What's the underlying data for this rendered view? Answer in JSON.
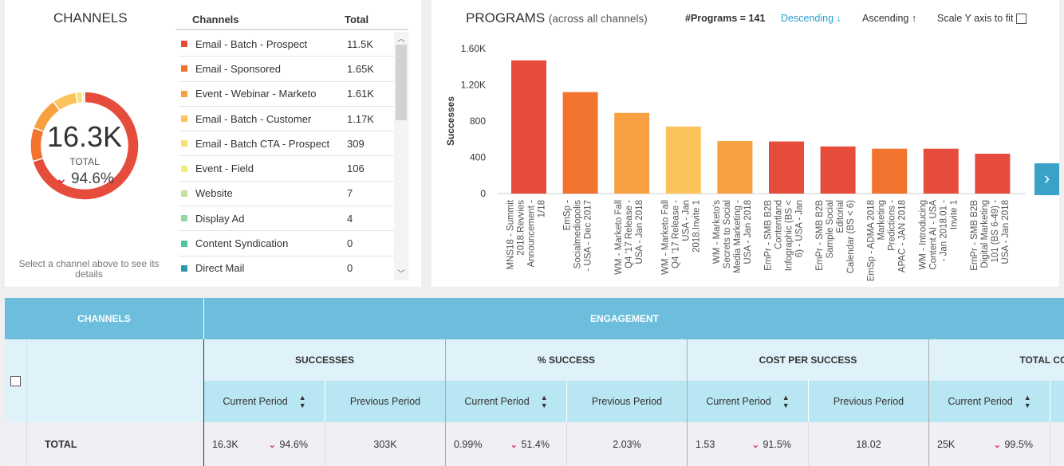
{
  "channels_panel": {
    "title": "CHANNELS",
    "total_value": "16.3K",
    "total_label": "TOTAL",
    "change": "94.6%",
    "change_direction": "down",
    "hint": "Select a channel above to see its details",
    "col_channel": "Channels",
    "col_total": "Total",
    "items": [
      {
        "name": "Email - Batch - Prospect",
        "total": "11.5K",
        "value": 11500,
        "color": "#e64c3c"
      },
      {
        "name": "Email - Sponsored",
        "total": "1.65K",
        "value": 1650,
        "color": "#f2732e"
      },
      {
        "name": "Event - Webinar - Marketo",
        "total": "1.61K",
        "value": 1610,
        "color": "#f7a041"
      },
      {
        "name": "Email - Batch - Customer",
        "total": "1.17K",
        "value": 1170,
        "color": "#fcc35d"
      },
      {
        "name": "Email - Batch CTA - Prospect",
        "total": "309",
        "value": 309,
        "color": "#f8e079"
      },
      {
        "name": "Event - Field",
        "total": "106",
        "value": 106,
        "color": "#eef07a"
      },
      {
        "name": "Website",
        "total": "7",
        "value": 7,
        "color": "#c5e19a"
      },
      {
        "name": "Display Ad",
        "total": "4",
        "value": 4,
        "color": "#96d6a0"
      },
      {
        "name": "Content Syndication",
        "total": "0",
        "value": 0,
        "color": "#4fc49c"
      },
      {
        "name": "Direct Mail",
        "total": "0",
        "value": 0,
        "color": "#2a9aa6"
      }
    ]
  },
  "programs_panel": {
    "title": "PROGRAMS",
    "subtitle": "(across all channels)",
    "count": "#Programs = 141",
    "descending": "Descending",
    "ascending": "Ascending",
    "scale_label": "Scale Y axis to fit",
    "scale_checked": false
  },
  "chart_data": {
    "type": "bar",
    "ylabel": "Successes",
    "ylim": [
      0,
      1600
    ],
    "yticks": [
      "0",
      "400",
      "800",
      "1.20K",
      "1.60K"
    ],
    "categories": [
      "MNS18 - Summit 2018.Revvies Announcement - 1/18",
      "EmSp - Socialmediopolis - USA - Dec 2017",
      "WM - Marketo Fall Q4 '17 Release - USA - Jan 2018",
      "WM - Marketo Fall Q4 '17 Release - USA - Jan 2018.Invite 1",
      "WM - Marketo's Secrets to Social Media Marketing - USA - Jan 2018",
      "EmPr - SMB B2B Contentland Infographic (BS < 6) - USA - Jan",
      "EmPr - SMB B2B Sample Social Editorial Calendar (BS < 6)",
      "EmSp - ADMA 2018 Marketing Predictions - APAC - JAN 2018",
      "WM - Introducing Content AI - USA - Jan 2018.01 - Invite 1",
      "EmPr - SMB B2B Digital Marketing 101 (BS 6-49) - USA - Jan 2018"
    ],
    "values": [
      1470,
      1120,
      890,
      740,
      580,
      575,
      520,
      495,
      495,
      440
    ],
    "colors": [
      "#e64c3c",
      "#f2732e",
      "#f7a041",
      "#fcc35d",
      "#f7a041",
      "#e64c3c",
      "#e64c3c",
      "#f2732e",
      "#e64c3c",
      "#e64c3c"
    ]
  },
  "table": {
    "channels": "CHANNELS",
    "engagement": "ENGAGEMENT",
    "groups": [
      {
        "name": "SUCCESSES",
        "current": "16.3K",
        "change": "94.6%",
        "previous": "303K"
      },
      {
        "name": "% SUCCESS",
        "current": "0.99%",
        "change": "51.4%",
        "previous": "2.03%"
      },
      {
        "name": "COST PER SUCCESS",
        "current": "1.53",
        "change": "91.5%",
        "previous": "18.02"
      },
      {
        "name": "TOTAL COST",
        "current": "25K",
        "change": "99.5%",
        "previous": ""
      }
    ],
    "current_period": "Current Period",
    "previous_period": "Previous Period",
    "total_label": "TOTAL"
  }
}
